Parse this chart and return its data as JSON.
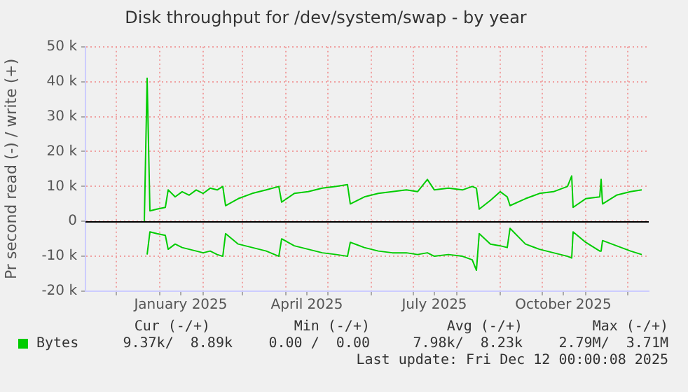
{
  "chart_data": {
    "type": "line",
    "title": "Disk throughput for /dev/system/swap - by year",
    "ylabel": "Pr second read (-) / write (+)",
    "x": [
      "2024-12-21",
      "2024-12-23",
      "2024-12-25",
      "2024-12-30",
      "2025-01-05",
      "2025-01-07",
      "2025-01-12",
      "2025-01-17",
      "2025-01-22",
      "2025-01-27",
      "2025-02-01",
      "2025-02-06",
      "2025-02-11",
      "2025-02-15",
      "2025-02-17",
      "2025-02-26",
      "2025-03-08",
      "2025-03-18",
      "2025-03-27",
      "2025-03-29",
      "2025-04-07",
      "2025-04-17",
      "2025-04-27",
      "2025-05-07",
      "2025-05-15",
      "2025-05-17",
      "2025-05-27",
      "2025-06-06",
      "2025-06-16",
      "2025-06-26",
      "2025-07-04",
      "2025-07-11",
      "2025-07-16",
      "2025-07-26",
      "2025-08-05",
      "2025-08-12",
      "2025-08-15",
      "2025-08-17",
      "2025-08-25",
      "2025-09-01",
      "2025-09-06",
      "2025-09-08",
      "2025-09-19",
      "2025-09-29",
      "2025-10-09",
      "2025-10-19",
      "2025-10-22",
      "2025-10-23",
      "2025-11-01",
      "2025-11-11",
      "2025-11-12",
      "2025-11-13",
      "2025-11-23",
      "2025-12-03",
      "2025-12-11"
    ],
    "series": [
      {
        "name": "Bytes",
        "color": "#00cc00",
        "values": [
          0,
          41000,
          3000,
          3500,
          4000,
          9000,
          7000,
          8500,
          7500,
          9000,
          8000,
          9500,
          9000,
          10000,
          4500,
          6500,
          8000,
          9000,
          10000,
          5500,
          8000,
          8500,
          9500,
          10000,
          10500,
          5000,
          7000,
          8000,
          8500,
          9000,
          8500,
          12000,
          9000,
          9500,
          9000,
          10000,
          9500,
          3500,
          6000,
          8500,
          7000,
          4500,
          6500,
          8000,
          8500,
          10000,
          13000,
          4000,
          6500,
          7000,
          12000,
          5000,
          7500,
          8500,
          9000
        ]
      },
      {
        "color": "#00cc00",
        "values": [
          null,
          -9500,
          -3000,
          -3500,
          -4000,
          -8000,
          -6500,
          -7500,
          -8000,
          -8500,
          -9000,
          -8500,
          -9500,
          -10000,
          -3500,
          -6500,
          -7500,
          -8500,
          -10000,
          -5000,
          -7000,
          -8000,
          -9000,
          -9500,
          -10000,
          -6000,
          -7500,
          -8500,
          -9000,
          -9000,
          -9500,
          -9000,
          -10000,
          -9500,
          -10000,
          -11000,
          -14000,
          -3500,
          -6500,
          -7000,
          -7500,
          -2000,
          -6500,
          -8000,
          -9000,
          -10000,
          -10500,
          -3000,
          -6000,
          -8500,
          -8500,
          -5500,
          -7000,
          -8500,
          -9500
        ]
      }
    ],
    "xlim": [
      "2024-11-09",
      "2025-12-16"
    ],
    "xticks": [
      {
        "value": "2024-12-01",
        "label": null
      },
      {
        "value": "2025-01-01",
        "label": null
      },
      {
        "value": "2025-01-16",
        "label": "January 2025"
      },
      {
        "value": "2025-02-01",
        "label": null
      },
      {
        "value": "2025-03-01",
        "label": null
      },
      {
        "value": "2025-04-01",
        "label": null
      },
      {
        "value": "2025-04-16",
        "label": "April 2025"
      },
      {
        "value": "2025-05-01",
        "label": null
      },
      {
        "value": "2025-06-01",
        "label": null
      },
      {
        "value": "2025-07-01",
        "label": null
      },
      {
        "value": "2025-07-16",
        "label": "July 2025"
      },
      {
        "value": "2025-08-01",
        "label": null
      },
      {
        "value": "2025-09-01",
        "label": null
      },
      {
        "value": "2025-10-01",
        "label": null
      },
      {
        "value": "2025-10-16",
        "label": "October 2025"
      },
      {
        "value": "2025-11-01",
        "label": null
      },
      {
        "value": "2025-12-01",
        "label": null
      }
    ],
    "ylim": [
      -20000,
      50000
    ],
    "yticks": [
      {
        "value": -20000,
        "label": "-20 k"
      },
      {
        "value": -10000,
        "label": "-10 k"
      },
      0,
      {
        "value": 10000,
        "label": "10 k"
      },
      {
        "value": 20000,
        "label": "20 k"
      },
      {
        "value": 30000,
        "label": "30 k"
      },
      {
        "value": 40000,
        "label": "40 k"
      },
      {
        "value": 50000,
        "label": "50 k"
      }
    ],
    "ref_lines": [
      {
        "axis": "y",
        "value": 0,
        "color": "#000000"
      }
    ],
    "grid": true,
    "legend": "bottom left",
    "marker": "none",
    "line_style": "solid",
    "annotations": [
      "Cur (-/+)",
      "Min (-/+)",
      "Avg (-/+)",
      "Max (-/+)",
      "9.37k/  8.89k",
      "0.00 /  0.00",
      "7.98k/  8.23k",
      "2.79M/  3.71M",
      "Last update: Fri Dec 12 00:00:08 2025"
    ]
  }
}
